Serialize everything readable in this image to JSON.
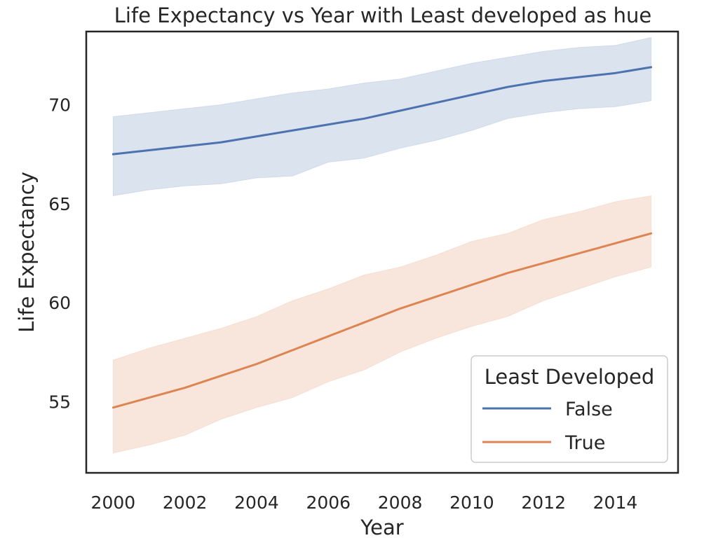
{
  "chart_data": {
    "type": "line",
    "title": "Life Expectancy vs Year with Least developed as hue",
    "xlabel": "Year",
    "ylabel": "Life Expectancy",
    "xlim": [
      1999.25,
      2015.75
    ],
    "ylim": [
      51.4,
      73.7
    ],
    "x_ticks": [
      2000,
      2002,
      2004,
      2006,
      2008,
      2010,
      2012,
      2014
    ],
    "y_ticks": [
      55,
      60,
      65,
      70
    ],
    "grid": false,
    "legend": {
      "title": "Least Developed",
      "placement": "lower-right"
    },
    "x": [
      2000,
      2001,
      2002,
      2003,
      2004,
      2005,
      2006,
      2007,
      2008,
      2009,
      2010,
      2011,
      2012,
      2013,
      2014,
      2015
    ],
    "series": [
      {
        "name": "False",
        "color": "#4c72b0",
        "values": [
          67.5,
          67.7,
          67.9,
          68.1,
          68.4,
          68.7,
          69.0,
          69.3,
          69.7,
          70.1,
          70.5,
          70.9,
          71.2,
          71.4,
          71.6,
          71.9
        ],
        "ci_low": [
          65.4,
          65.7,
          65.9,
          66.0,
          66.3,
          66.4,
          67.1,
          67.3,
          67.8,
          68.2,
          68.7,
          69.3,
          69.6,
          69.8,
          69.9,
          70.2
        ],
        "ci_high": [
          69.4,
          69.6,
          69.8,
          70.0,
          70.3,
          70.6,
          70.8,
          71.1,
          71.3,
          71.7,
          72.1,
          72.4,
          72.7,
          72.9,
          73.0,
          73.4
        ]
      },
      {
        "name": "True",
        "color": "#dd8452",
        "values": [
          54.7,
          55.2,
          55.7,
          56.3,
          56.9,
          57.6,
          58.3,
          59.0,
          59.7,
          60.3,
          60.9,
          61.5,
          62.0,
          62.5,
          63.0,
          63.5
        ],
        "ci_low": [
          52.4,
          52.8,
          53.3,
          54.1,
          54.7,
          55.2,
          56.0,
          56.6,
          57.5,
          58.2,
          58.8,
          59.3,
          60.1,
          60.7,
          61.3,
          61.8
        ],
        "ci_high": [
          57.1,
          57.7,
          58.2,
          58.7,
          59.3,
          60.1,
          60.7,
          61.4,
          61.8,
          62.4,
          63.1,
          63.5,
          64.2,
          64.6,
          65.1,
          65.4
        ]
      }
    ]
  }
}
